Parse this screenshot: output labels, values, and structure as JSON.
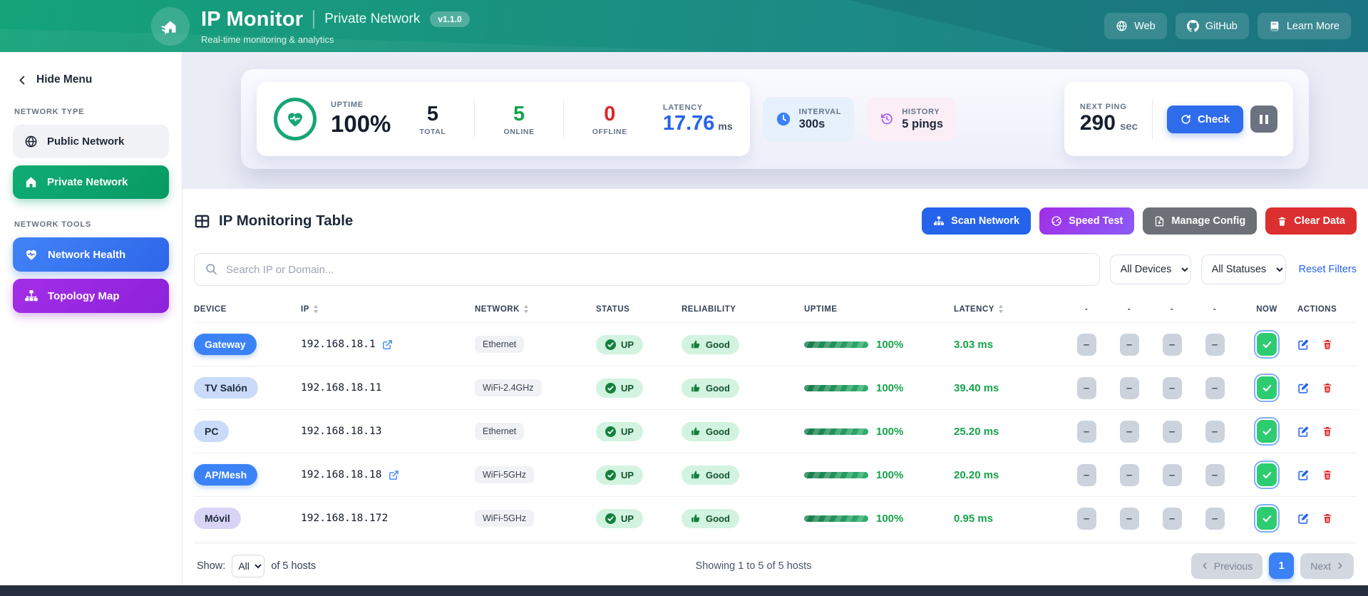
{
  "header": {
    "app_title": "IP Monitor",
    "app_subtitle": "Real-time monitoring & analytics",
    "network_name": "Private Network",
    "version": "v1.1.0",
    "nav": [
      {
        "label": "Web"
      },
      {
        "label": "GitHub"
      },
      {
        "label": "Learn More"
      }
    ]
  },
  "sidebar": {
    "hide_menu_label": "Hide Menu",
    "network_type_label": "NETWORK TYPE",
    "network_tools_label": "NETWORK TOOLS",
    "items": [
      {
        "label": "Public Network"
      },
      {
        "label": "Private Network"
      },
      {
        "label": "Network Health"
      },
      {
        "label": "Topology Map"
      }
    ]
  },
  "stats": {
    "uptime_label": "UPTIME",
    "uptime_value": "100%",
    "total_value": "5",
    "total_label": "TOTAL",
    "online_value": "5",
    "online_label": "ONLINE",
    "offline_value": "0",
    "offline_label": "OFFLINE",
    "latency_label": "LATENCY",
    "latency_value": "17.76",
    "latency_unit": "ms",
    "interval_label": "INTERVAL",
    "interval_value": "300s",
    "history_label": "HISTORY",
    "history_value": "5 pings",
    "next_ping_label": "NEXT PING",
    "next_ping_value": "290",
    "next_ping_unit": "sec",
    "check_button_label": "Check"
  },
  "table_section": {
    "title": "IP Monitoring Table",
    "actions": [
      {
        "label": "Scan Network"
      },
      {
        "label": "Speed Test"
      },
      {
        "label": "Manage Config"
      },
      {
        "label": "Clear Data"
      }
    ],
    "search_placeholder": "Search IP or Domain...",
    "device_filter_value": "All Devices",
    "status_filter_value": "All Statuses",
    "reset_filters_label": "Reset Filters",
    "empty_slot": "–",
    "columns": [
      {
        "label": "DEVICE",
        "sortable": false
      },
      {
        "label": "IP",
        "sortable": true
      },
      {
        "label": "NETWORK",
        "sortable": true
      },
      {
        "label": "STATUS",
        "sortable": false
      },
      {
        "label": "RELIABILITY",
        "sortable": false
      },
      {
        "label": "UPTIME",
        "sortable": false
      },
      {
        "label": "LATENCY",
        "sortable": true
      },
      {
        "label": "-",
        "sortable": false
      },
      {
        "label": "-",
        "sortable": false
      },
      {
        "label": "-",
        "sortable": false
      },
      {
        "label": "-",
        "sortable": false
      },
      {
        "label": "NOW",
        "sortable": false
      },
      {
        "label": "ACTIONS",
        "sortable": false
      }
    ],
    "rows": [
      {
        "device": "Gateway",
        "badge": "solid",
        "ip": "192.168.18.1",
        "external_link": true,
        "network": "Ethernet",
        "status": "UP",
        "reliability": "Good",
        "uptime": "100%",
        "uptime_pct": 100,
        "latency": "3.03 ms"
      },
      {
        "device": "TV Salón",
        "badge": "light",
        "ip": "192.168.18.11",
        "external_link": false,
        "network": "WiFi-2.4GHz",
        "status": "UP",
        "reliability": "Good",
        "uptime": "100%",
        "uptime_pct": 100,
        "latency": "39.40 ms"
      },
      {
        "device": "PC",
        "badge": "light",
        "ip": "192.168.18.13",
        "external_link": false,
        "network": "Ethernet",
        "status": "UP",
        "reliability": "Good",
        "uptime": "100%",
        "uptime_pct": 100,
        "latency": "25.20 ms"
      },
      {
        "device": "AP/Mesh",
        "badge": "solid",
        "ip": "192.168.18.18",
        "external_link": true,
        "network": "WiFi-5GHz",
        "status": "UP",
        "reliability": "Good",
        "uptime": "100%",
        "uptime_pct": 100,
        "latency": "20.20 ms"
      },
      {
        "device": "Móvil",
        "badge": "lavender",
        "ip": "192.168.18.172",
        "external_link": false,
        "network": "WiFi-5GHz",
        "status": "UP",
        "reliability": "Good",
        "uptime": "100%",
        "uptime_pct": 100,
        "latency": "0.95 ms"
      }
    ]
  },
  "pagination": {
    "show_label": "Show:",
    "show_value": "All",
    "hosts_suffix": "of 5 hosts",
    "summary": "Showing 1 to 5 of 5 hosts",
    "previous_label": "Previous",
    "current_page": "1",
    "next_label": "Next"
  },
  "colors": {
    "header_gradient_start": "#14a379",
    "header_gradient_end": "#1f7e8c",
    "sidebar_active_green": "#0ead74",
    "accent_blue": "#2563eb",
    "accent_purple": "#9333ea",
    "danger_red": "#dc2626",
    "status_green": "#16a34a"
  }
}
